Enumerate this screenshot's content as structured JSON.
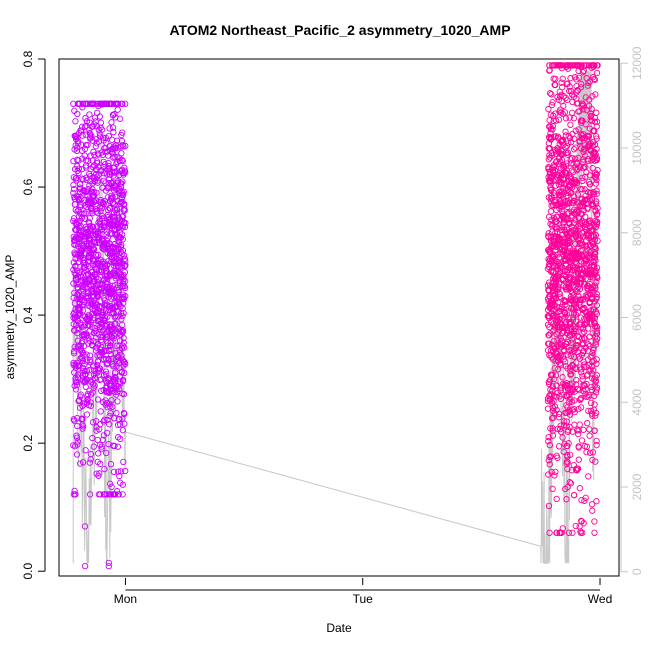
{
  "chart_data": {
    "type": "scatter",
    "title": "ATOM2 Northeast_Pacific_2 asymmetry_1020_AMP",
    "xlabel": "Date",
    "ylabel": "asymmetry_1020_AMP",
    "x_ticks": [
      "Mon",
      "Tue",
      "Wed"
    ],
    "x_tick_positions_days": [
      1.0,
      2.0,
      3.0
    ],
    "xlim_days": [
      0.72,
      3.08
    ],
    "ylim": [
      -0.0075,
      0.8
    ],
    "y_ticks": [
      "0.0",
      "0.2",
      "0.4",
      "0.6",
      "0.8"
    ],
    "y_tick_values": [
      0.0,
      0.2,
      0.4,
      0.6,
      0.8
    ],
    "y2_ticks": [
      "0",
      "2000",
      "4000",
      "6000",
      "8000",
      "10000",
      "12000"
    ],
    "y2_tick_values": [
      0,
      2000,
      4000,
      6000,
      8000,
      10000,
      12000
    ],
    "y2lim": [
      -100,
      12100
    ],
    "grid": false,
    "legend": "none",
    "colors": {
      "cluster_1": "#cc00ff",
      "cluster_2": "#ff0099",
      "secondary_line": "#c8c8c8",
      "right_axis": "#c4c4c4"
    },
    "series": [
      {
        "role": "points",
        "clusters": [
          {
            "x_range": [
              0.78,
              1.0
            ],
            "y_range": [
              0.12,
              0.73
            ],
            "y_mean": 0.46,
            "count": 1400,
            "outliers": [
              [
                0.83,
                0.008
              ],
              [
                0.83,
                0.07
              ],
              [
                0.93,
                0.008
              ],
              [
                0.93,
                0.013
              ]
            ]
          },
          {
            "x_range": [
              2.78,
              2.99
            ],
            "y_range": [
              0.06,
              0.79
            ],
            "y_mean": 0.48,
            "count": 1500,
            "outliers": [
              [
                2.92,
                0.787
              ],
              [
                2.87,
                0.75
              ],
              [
                2.94,
                0.74
              ]
            ]
          }
        ]
      },
      {
        "role": "right_axis_line",
        "points": [
          [
            0.78,
            500
          ],
          [
            0.78,
            6500
          ],
          [
            0.84,
            200
          ],
          [
            0.9,
            9000
          ],
          [
            0.92,
            200
          ],
          [
            0.97,
            8000
          ],
          [
            1.0,
            3300
          ],
          [
            2.75,
            600
          ],
          [
            2.78,
            200
          ],
          [
            2.82,
            7000
          ],
          [
            2.86,
            200
          ],
          [
            2.9,
            7500
          ],
          [
            2.93,
            11800
          ],
          [
            2.96,
            11800
          ],
          [
            2.97,
            4000
          ],
          [
            2.99,
            8000
          ]
        ]
      }
    ]
  }
}
